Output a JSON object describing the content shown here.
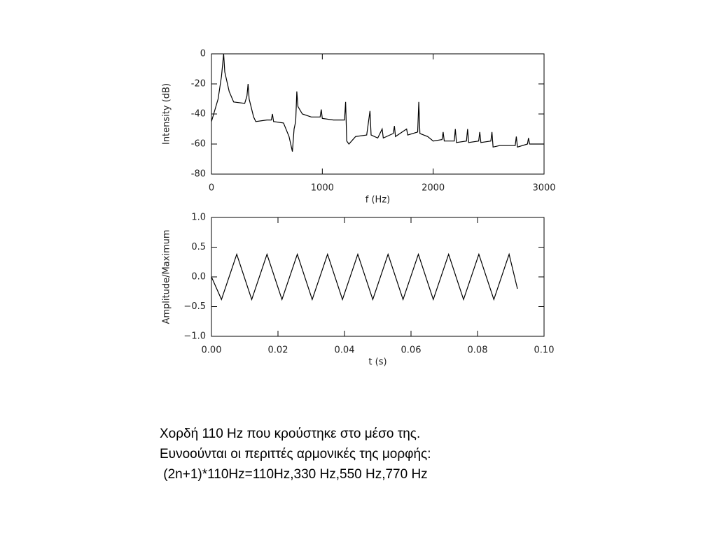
{
  "chart_data": [
    {
      "type": "line",
      "xlabel": "f (Hz)",
      "ylabel": "Intensity (dB)",
      "xlim": [
        0,
        3000
      ],
      "xticks": [
        0,
        1000,
        2000,
        3000
      ],
      "ylim": [
        -80,
        0
      ],
      "yticks": [
        0,
        -20,
        -40,
        -60,
        -80
      ],
      "series": [
        {
          "color": "#000000",
          "x": [
            0,
            20,
            60,
            90,
            110,
            120,
            160,
            200,
            300,
            320,
            330,
            340,
            380,
            400,
            500,
            540,
            550,
            560,
            650,
            700,
            730,
            745,
            760,
            770,
            780,
            820,
            900,
            980,
            990,
            1000,
            1100,
            1200,
            1210,
            1220,
            1240,
            1300,
            1400,
            1430,
            1440,
            1500,
            1540,
            1550,
            1640,
            1650,
            1660,
            1760,
            1770,
            1860,
            1870,
            1880,
            1950,
            2000,
            2080,
            2090,
            2100,
            2190,
            2200,
            2210,
            2300,
            2310,
            2320,
            2410,
            2420,
            2430,
            2520,
            2530,
            2540,
            2600,
            2740,
            2750,
            2760,
            2850,
            2860,
            2870,
            3000
          ],
          "values": [
            -45,
            -40,
            -30,
            -15,
            0,
            -12,
            -25,
            -32,
            -33,
            -28,
            -20,
            -30,
            -42,
            -45,
            -44,
            -44,
            -40,
            -45,
            -46,
            -55,
            -65,
            -50,
            -45,
            -25,
            -35,
            -40,
            -42,
            -42,
            -37,
            -43,
            -44,
            -44,
            -32,
            -58,
            -60,
            -55,
            -54,
            -38,
            -54,
            -56,
            -50,
            -56,
            -53,
            -48,
            -55,
            -50,
            -54,
            -52,
            -32,
            -53,
            -55,
            -58,
            -57,
            -52,
            -58,
            -58,
            -50,
            -59,
            -58,
            -50,
            -59,
            -58,
            -52,
            -59,
            -58,
            -52,
            -62,
            -61,
            -61,
            -55,
            -62,
            -60,
            -56,
            -60,
            -60
          ]
        }
      ]
    },
    {
      "type": "line",
      "xlabel": "t (s)",
      "ylabel": "Amplitude/Maximum",
      "xlim": [
        0,
        0.1
      ],
      "xticks": [
        {
          "value": 0,
          "label": "0.00"
        },
        {
          "value": 0.02,
          "label": "0.02"
        },
        {
          "value": 0.04,
          "label": "0.04"
        },
        {
          "value": 0.06,
          "label": "0.06"
        },
        {
          "value": 0.08,
          "label": "0.08"
        },
        {
          "value": 0.1,
          "label": "0.10"
        }
      ],
      "ylim": [
        -1,
        1
      ],
      "yticks": [
        {
          "value": 1,
          "label": "1.0"
        },
        {
          "value": 0.5,
          "label": "0.5"
        },
        {
          "value": 0,
          "label": "0.0"
        },
        {
          "value": -0.5,
          "label": "−0.5"
        },
        {
          "value": -1,
          "label": "−1.0"
        }
      ],
      "series": [
        {
          "color": "#000000",
          "x": [
            0,
            0.003,
            0.0076,
            0.0121,
            0.0167,
            0.0212,
            0.0258,
            0.0303,
            0.0349,
            0.0394,
            0.044,
            0.0485,
            0.0531,
            0.0576,
            0.0622,
            0.0667,
            0.0713,
            0.0758,
            0.0804,
            0.0849,
            0.0895,
            0.092
          ],
          "values": [
            0,
            -0.38,
            0.38,
            -0.38,
            0.38,
            -0.38,
            0.38,
            -0.38,
            0.38,
            -0.38,
            0.38,
            -0.38,
            0.38,
            -0.38,
            0.38,
            -0.38,
            0.38,
            -0.38,
            0.38,
            -0.38,
            0.38,
            -0.2
          ]
        }
      ]
    }
  ],
  "caption": [
    "Χορδή 110 Hz που κρούστηκε στο μέσο της.",
    "Ευνοούνται οι περιττές αρμονικές της μορφής:",
    " (2n+1)*110Hz=110Hz,330 Hz,550 Hz,770 Hz"
  ]
}
